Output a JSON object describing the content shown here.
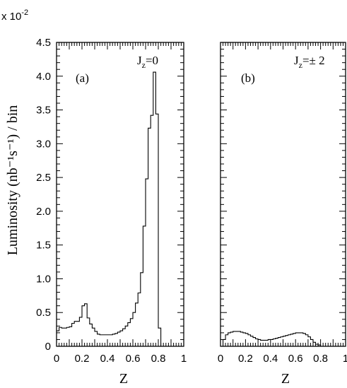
{
  "chart_data": {
    "type": "line",
    "scale_label": "x 10",
    "scale_exponent": "-2",
    "ylabel": "Luminosity (nb⁻¹s⁻¹) / bin",
    "ylim": [
      0,
      4.5
    ],
    "yticks": [
      "0",
      "0.5",
      "1.0",
      "1.5",
      "2.0",
      "2.5",
      "3.0",
      "3.5",
      "4.0",
      "4.5"
    ],
    "panels": [
      {
        "id": "a",
        "tag": "(a)",
        "annotation": "Jz=0",
        "annotation_main": "J",
        "annotation_sub": "z",
        "annotation_rest": "=0",
        "xlabel": "Z",
        "xlim": [
          0,
          1
        ],
        "xticks": [
          "0",
          "0.2",
          "0.4",
          "0.6",
          "0.8",
          "1"
        ],
        "bin_width": 0.02,
        "values": [
          0.23,
          0.28,
          0.27,
          0.27,
          0.28,
          0.29,
          0.34,
          0.37,
          0.37,
          0.43,
          0.6,
          0.63,
          0.42,
          0.33,
          0.27,
          0.22,
          0.18,
          0.17,
          0.17,
          0.17,
          0.17,
          0.17,
          0.18,
          0.19,
          0.21,
          0.23,
          0.26,
          0.3,
          0.35,
          0.41,
          0.5,
          0.64,
          0.79,
          1.09,
          1.78,
          2.48,
          3.23,
          3.42,
          4.06,
          3.44,
          0.27,
          0.0,
          0.0,
          0.0,
          0.0,
          0.0,
          0.0,
          0.0,
          0.0,
          0.0
        ]
      },
      {
        "id": "b",
        "tag": "(b)",
        "annotation": "Jz=±2",
        "annotation_main": "J",
        "annotation_sub": "z",
        "annotation_rest": "=± 2",
        "xlabel": "Z",
        "xlim": [
          0,
          1
        ],
        "xticks": [
          "0",
          "0.2",
          "0.4",
          "0.6",
          "0.8",
          "1"
        ],
        "bin_width": 0.02,
        "values": [
          0.0,
          0.1,
          0.17,
          0.2,
          0.21,
          0.22,
          0.22,
          0.22,
          0.21,
          0.2,
          0.19,
          0.17,
          0.15,
          0.13,
          0.11,
          0.1,
          0.09,
          0.09,
          0.09,
          0.1,
          0.1,
          0.11,
          0.12,
          0.13,
          0.14,
          0.15,
          0.16,
          0.17,
          0.18,
          0.19,
          0.2,
          0.2,
          0.2,
          0.19,
          0.17,
          0.14,
          0.1,
          0.06,
          0.03,
          0.02,
          0.0,
          0.0,
          0.0,
          0.0,
          0.0,
          0.0,
          0.0,
          0.0,
          0.0,
          0.0
        ]
      }
    ]
  }
}
